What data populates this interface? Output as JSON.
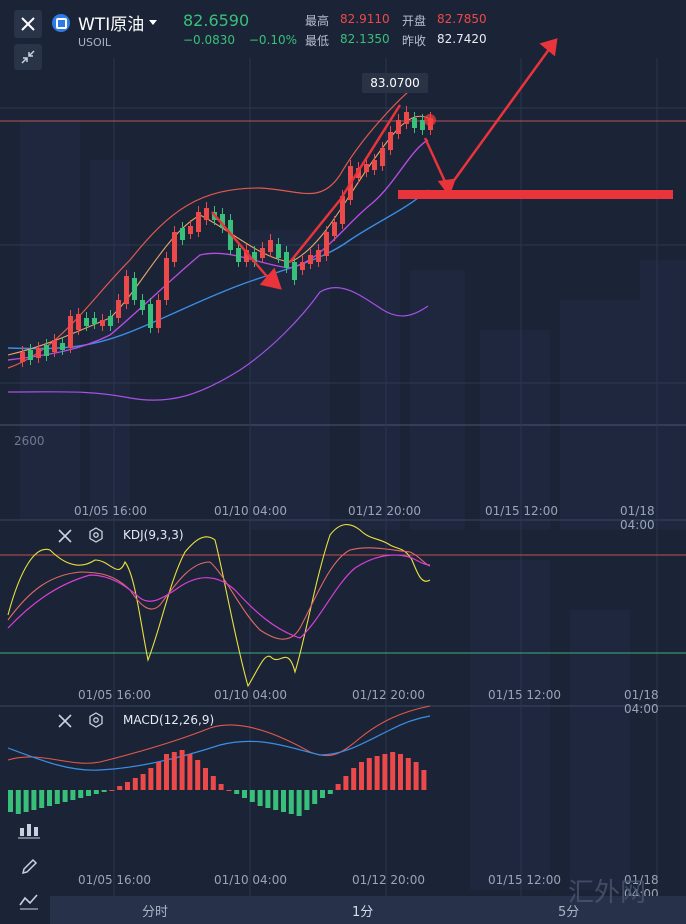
{
  "header": {
    "symbol_name": "WTI原油",
    "symbol_code": "USOIL",
    "last_price": "82.6590",
    "change": "−0.0830",
    "change_pct": "−0.10%",
    "stats": {
      "high_label": "最高",
      "high_value": "82.9110",
      "open_label": "开盘",
      "open_value": "82.7850",
      "low_label": "最低",
      "low_value": "82.1350",
      "prev_close_label": "昨收",
      "prev_close_value": "82.7420"
    }
  },
  "main_chart": {
    "price_tag": "83.0700",
    "y_tick": "2600",
    "x_ticks": [
      "01/05 16:00",
      "01/10 04:00",
      "01/12 20:00",
      "01/15 12:00",
      "01/18 04:00"
    ]
  },
  "kdj": {
    "title": "KDJ(9,3,3)",
    "x_ticks": [
      "01/05 16:00",
      "01/10 04:00",
      "01/12 20:00",
      "01/15 12:00",
      "01/18 04:00"
    ]
  },
  "macd": {
    "title": "MACD(12,26,9)",
    "x_ticks": [
      "01/05 16:00",
      "01/10 04:00",
      "01/12 20:00",
      "01/15 12:00",
      "01/18 04:00"
    ]
  },
  "bottom_tabs": [
    "分时",
    "1分",
    "5分"
  ],
  "watermark": "汇外网",
  "colors": {
    "background": "#1b2336",
    "up": "#ec4a4a",
    "down": "#38c07a",
    "annotation": "#e8343a",
    "ma_blue": "#3a8ee6",
    "ma_purple": "#b74ce0"
  },
  "icons": {
    "close": "close-icon",
    "collapse": "collapse-arrows-icon",
    "symbol": "symbol-badge-icon",
    "dropdown": "caret-down-icon",
    "panel_close": "close-icon",
    "panel_settings": "hexagon-settings-icon",
    "tool1": "indicator-icon",
    "tool2": "pencil-icon",
    "tool3": "line-tool-icon"
  }
}
